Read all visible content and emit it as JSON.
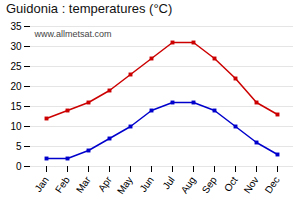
{
  "chart_data": {
    "type": "line",
    "title": "Guidonia : temperatures (°C)",
    "categories": [
      "Jan",
      "Feb",
      "Mar",
      "Apr",
      "May",
      "Jun",
      "Jul",
      "Aug",
      "Sep",
      "Oct",
      "Nov",
      "Dec"
    ],
    "series": [
      {
        "color": "#cc0000",
        "marker": "square",
        "values": [
          12,
          14,
          16,
          19,
          23,
          27,
          31,
          31,
          27,
          22,
          16,
          13
        ]
      },
      {
        "color": "#0000cc",
        "marker": "square",
        "values": [
          2,
          2,
          4,
          7,
          10,
          14,
          16,
          16,
          14,
          10,
          6,
          3
        ]
      }
    ],
    "ylim": [
      0,
      35
    ],
    "yticks": [
      0,
      5,
      10,
      15,
      20,
      25,
      30,
      35
    ],
    "grid": true,
    "annotations": [
      "www.allmetsat.com"
    ]
  }
}
